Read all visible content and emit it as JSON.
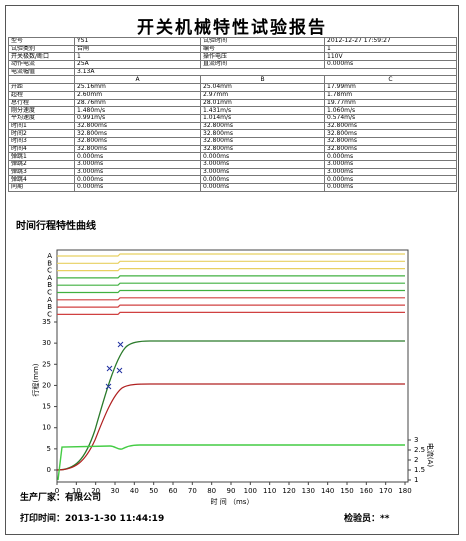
{
  "header": {
    "title": "开关机械特性试验报告"
  },
  "info": [
    [
      "型号",
      "YS1",
      "试验时间",
      "2012-12-27 17:59:27"
    ],
    [
      "试验类别",
      "合闸",
      "编号",
      "1"
    ],
    [
      "开关极数/断口",
      "1",
      "操作电压",
      "110V"
    ],
    [
      "动作电流",
      "25A",
      "直流时间",
      "0.000ms"
    ],
    [
      "电流幅值",
      "3.13A"
    ]
  ],
  "results": {
    "columns": [
      "A",
      "B",
      "C"
    ],
    "rows": [
      [
        "开距",
        "25.16mm",
        "25.04mm",
        "17.99mm"
      ],
      [
        "超程",
        "2.60mm",
        "2.97mm",
        "1.78mm"
      ],
      [
        "总行程",
        "28.76mm",
        "28.01mm",
        "19.77mm"
      ],
      [
        "刚分速度",
        "1.480m/s",
        "1.431m/s",
        "1.060m/s"
      ],
      [
        "平均速度",
        "0.991m/s",
        "1.014m/s",
        "0.574m/s"
      ],
      [
        "时间1",
        "32.800ms",
        "32.800ms",
        "32.800ms"
      ],
      [
        "时间2",
        "32.800ms",
        "32.800ms",
        "32.800ms"
      ],
      [
        "时间3",
        "32.800ms",
        "32.800ms",
        "32.800ms"
      ],
      [
        "时间4",
        "32.800ms",
        "32.800ms",
        "32.800ms"
      ],
      [
        "弹跳1",
        "0.000ms",
        "0.000ms",
        "0.000ms"
      ],
      [
        "弹跳2",
        "3.000ms",
        "3.000ms",
        "3.000ms"
      ],
      [
        "弹跳3",
        "3.000ms",
        "3.000ms",
        "3.000ms"
      ],
      [
        "弹跳4",
        "0.000ms",
        "0.000ms",
        "0.000ms"
      ],
      [
        "同期",
        "0.000ms",
        "0.000ms",
        "0.000ms"
      ]
    ]
  },
  "chart": {
    "title": "时间行程特性曲线",
    "channels": [
      "A",
      "B",
      "C",
      "A",
      "B",
      "C",
      "A",
      "B",
      "C"
    ],
    "xticks": [
      0,
      10,
      20,
      30,
      40,
      50,
      60,
      70,
      80,
      90,
      100,
      110,
      120,
      130,
      140,
      150,
      160,
      170,
      180
    ],
    "xlabel": "时 间 （ms）",
    "yticks": [
      0,
      5,
      10,
      15,
      20,
      25,
      30,
      35
    ],
    "ylabel": "行程(mm)",
    "y2ticks": [
      1,
      1.5,
      2,
      2.5,
      3
    ],
    "y2label": "电流(A)"
  },
  "footer": {
    "manufacturer": "生产厂家：有限公司",
    "print_time": "打印时间：2013-1-30 11:44:19",
    "inspector": "检验员：**"
  }
}
